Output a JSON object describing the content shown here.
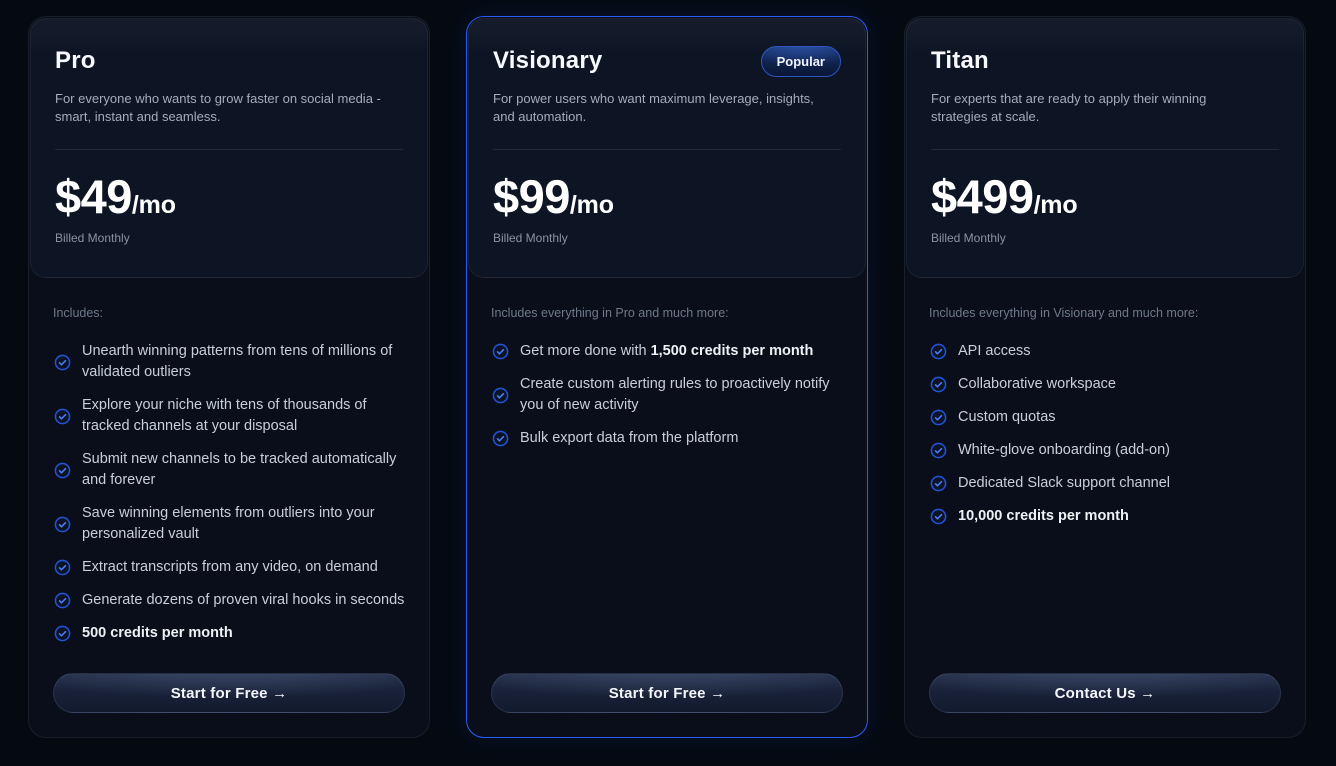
{
  "theme": {
    "page_background": "#050a12",
    "card_background": "#090e1a",
    "header_panel_background": "#0d1424",
    "popular_border_blue": "#2e5cf6",
    "check_icon_ring_blue": "#2253d4",
    "check_icon_mark_blue": "#4b7ef5",
    "price_text_color": "#ffffff",
    "feature_text_color": "#c8cfda"
  },
  "icons": {
    "feature_bullet": "check-circle-icon",
    "cta_arrow": "arrow-right-icon"
  },
  "cards": [
    {
      "id": "pro",
      "title": "Pro",
      "description": "For everyone who wants to grow faster on social media - smart, instant and seamless.",
      "price_amount": "$49",
      "price_period": "/mo",
      "billing_note": "Billed Monthly",
      "includes_label": "Includes:",
      "features": [
        {
          "segments": [
            {
              "text": "Unearth winning patterns from tens of millions of validated outliers",
              "bold": false
            }
          ]
        },
        {
          "segments": [
            {
              "text": "Explore your niche with tens of thousands of tracked channels at your disposal",
              "bold": false
            }
          ]
        },
        {
          "segments": [
            {
              "text": "Submit new channels to be tracked automatically and forever",
              "bold": false
            }
          ]
        },
        {
          "segments": [
            {
              "text": "Save winning elements from outliers into your personalized vault",
              "bold": false
            }
          ]
        },
        {
          "segments": [
            {
              "text": "Extract transcripts from any video, on demand",
              "bold": false
            }
          ]
        },
        {
          "segments": [
            {
              "text": "Generate dozens of proven viral hooks in seconds",
              "bold": false
            }
          ]
        },
        {
          "segments": [
            {
              "text": "500 credits per month",
              "bold": true
            }
          ]
        }
      ],
      "cta_label": "Start for Free →"
    },
    {
      "id": "visionary",
      "title": "Visionary",
      "badge": "Popular",
      "description": "For power users who want maximum leverage, insights, and automation.",
      "price_amount": "$99",
      "price_period": "/mo",
      "billing_note": "Billed Monthly",
      "includes_label": "Includes everything in Pro and much more:",
      "features": [
        {
          "segments": [
            {
              "text": "Get more done with ",
              "bold": false
            },
            {
              "text": "1,500 credits per month",
              "bold": true
            }
          ]
        },
        {
          "segments": [
            {
              "text": "Create custom alerting rules to proactively notify you of new activity",
              "bold": false
            }
          ]
        },
        {
          "segments": [
            {
              "text": "Bulk export data from the platform",
              "bold": false
            }
          ]
        }
      ],
      "cta_label": "Start for Free →"
    },
    {
      "id": "titan",
      "title": "Titan",
      "description": "For experts that are ready to apply their winning strategies at scale.",
      "price_amount": "$499",
      "price_period": "/mo",
      "billing_note": "Billed Monthly",
      "includes_label": "Includes everything in Visionary and much more:",
      "features": [
        {
          "segments": [
            {
              "text": "API access",
              "bold": false
            }
          ]
        },
        {
          "segments": [
            {
              "text": "Collaborative workspace",
              "bold": false
            }
          ]
        },
        {
          "segments": [
            {
              "text": "Custom quotas",
              "bold": false
            }
          ]
        },
        {
          "segments": [
            {
              "text": "White-glove onboarding (add-on)",
              "bold": false
            }
          ]
        },
        {
          "segments": [
            {
              "text": "Dedicated Slack support channel",
              "bold": false
            }
          ]
        },
        {
          "segments": [
            {
              "text": "10,000 credits per month",
              "bold": true
            }
          ]
        }
      ],
      "cta_label": "Contact Us →"
    }
  ]
}
